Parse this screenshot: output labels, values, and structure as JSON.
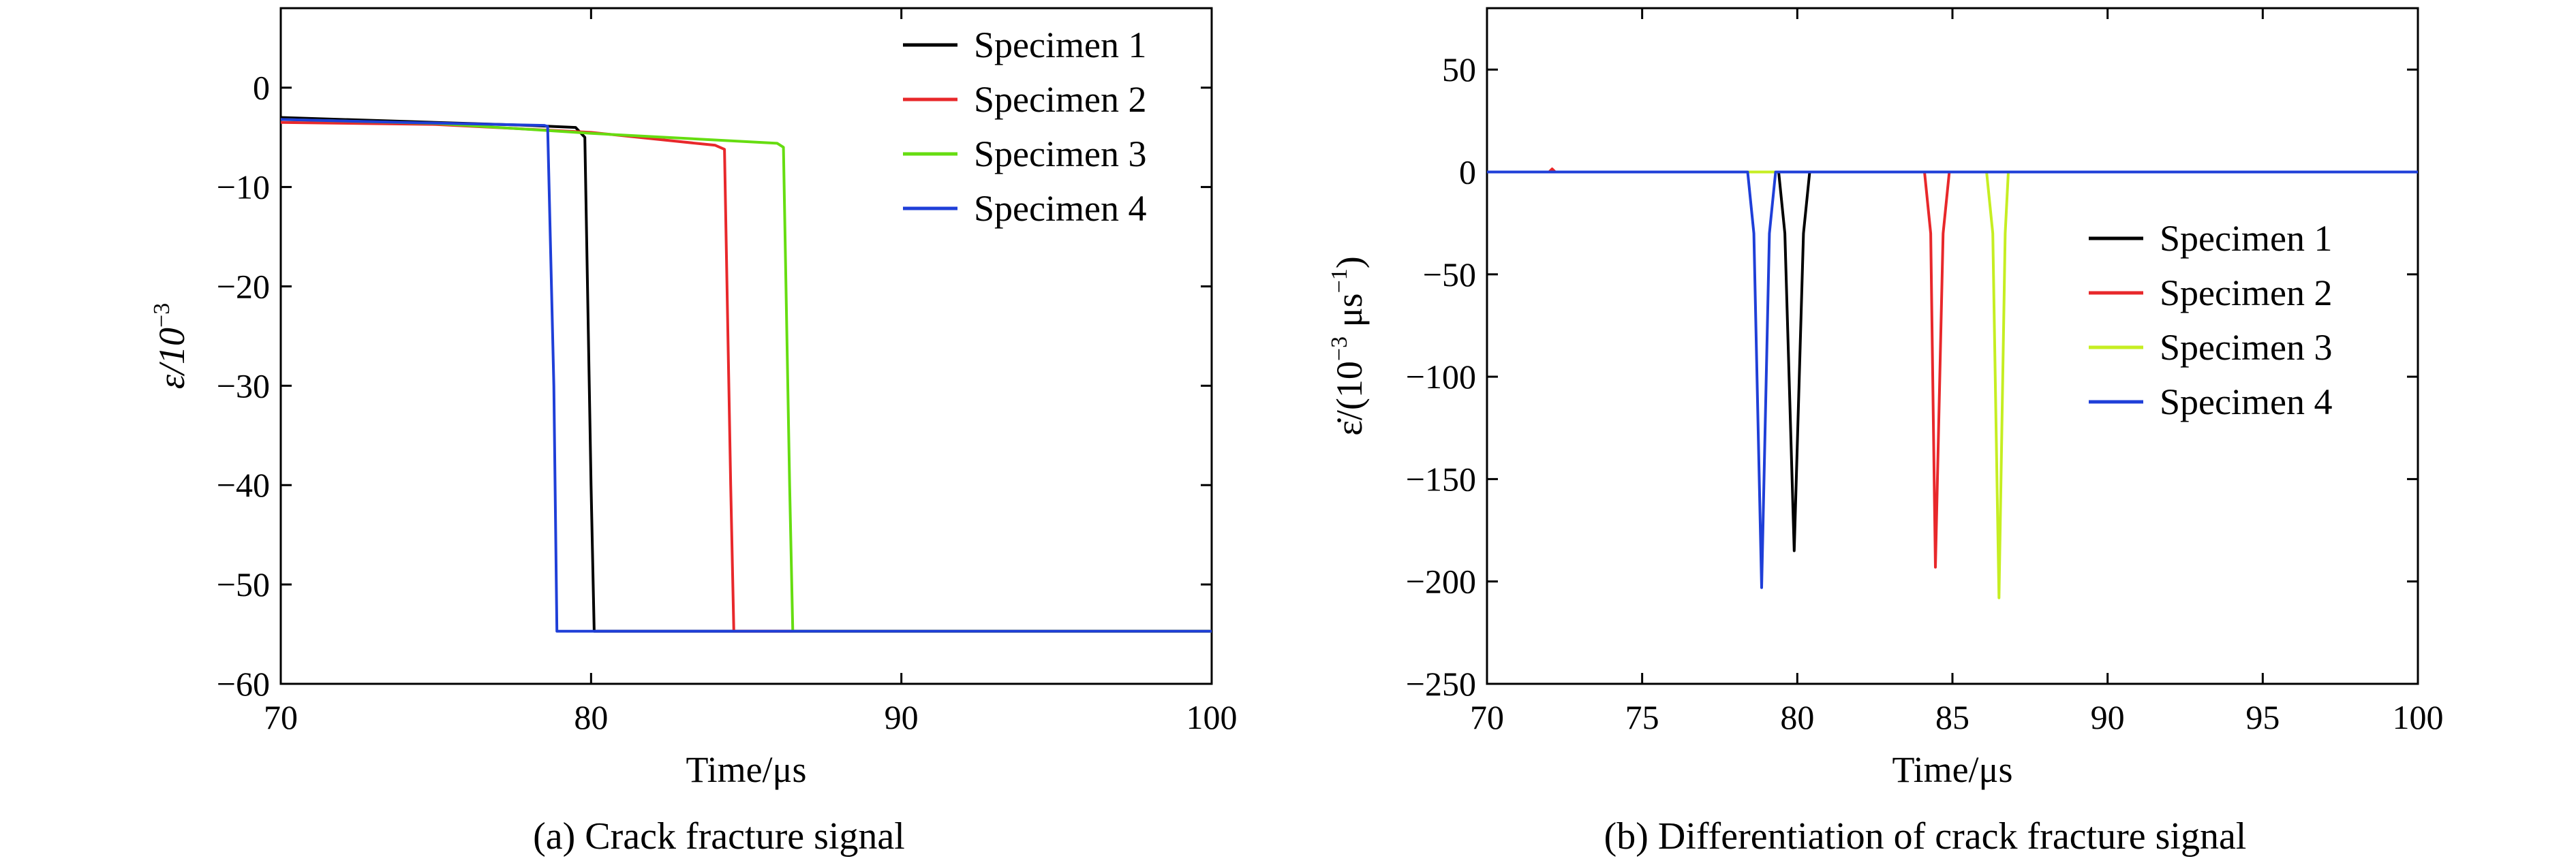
{
  "charts": [
    {
      "id": "a",
      "caption": "(a) Crack fracture signal",
      "xlabel": "Time/μs",
      "ylabel_main": "ε/10",
      "ylabel_sup": "−3",
      "xlim": [
        70,
        100
      ],
      "ylim": [
        -60,
        8
      ],
      "xticks": [
        70,
        80,
        90,
        100
      ],
      "yticks": [
        0,
        -10,
        -20,
        -30,
        -40,
        -50,
        -60
      ],
      "legend_position": "top-right",
      "chart_data": {
        "type": "line",
        "series": [
          {
            "name": "Specimen 1",
            "color": "#000000",
            "x": [
              70,
              74,
              78,
              79.5,
              79.8,
              80.0,
              80.1,
              100
            ],
            "y": [
              -3.0,
              -3.4,
              -3.8,
              -4.0,
              -5.0,
              -40.0,
              -54.7,
              -54.7
            ]
          },
          {
            "name": "Specimen 2",
            "color": "#e8282b",
            "x": [
              70,
              75,
              80,
              84.0,
              84.3,
              84.5,
              84.6,
              100
            ],
            "y": [
              -3.5,
              -3.7,
              -4.5,
              -5.8,
              -6.2,
              -40.0,
              -54.7,
              -54.7
            ]
          },
          {
            "name": "Specimen 3",
            "color": "#66dd11",
            "x": [
              70,
              75,
              80,
              86.0,
              86.2,
              86.4,
              86.5,
              100
            ],
            "y": [
              -3.2,
              -3.6,
              -4.6,
              -5.6,
              -6.0,
              -40.0,
              -54.7,
              -54.7
            ]
          },
          {
            "name": "Specimen 4",
            "color": "#1f3fd8",
            "x": [
              70,
              74,
              78.5,
              78.6,
              78.8,
              78.9,
              100
            ],
            "y": [
              -3.2,
              -3.5,
              -3.8,
              -3.9,
              -30.0,
              -54.7,
              -54.7
            ]
          }
        ]
      }
    },
    {
      "id": "b",
      "caption": "(b) Differentiation of crack fracture signal",
      "xlabel": "Time/μs",
      "ylabel_main": "ε̇/(10",
      "ylabel_sup": "−3",
      "ylabel_mid": " μs",
      "ylabel_sup2": "−1",
      "ylabel_end": ")",
      "xlim": [
        70,
        100
      ],
      "ylim": [
        -250,
        80
      ],
      "xticks": [
        70,
        75,
        80,
        85,
        90,
        95,
        100
      ],
      "yticks": [
        50,
        0,
        -50,
        -100,
        -150,
        -200,
        -250
      ],
      "legend_position": "center-right",
      "chart_data": {
        "type": "line",
        "series": [
          {
            "name": "Specimen 1",
            "color": "#000000",
            "x": [
              70,
              79.4,
              79.6,
              79.9,
              80.2,
              80.4,
              100
            ],
            "y": [
              0,
              0,
              -30,
              -185,
              -30,
              0,
              0
            ]
          },
          {
            "name": "Specimen 2",
            "color": "#e8282b",
            "x": [
              70,
              72.0,
              72.1,
              72.2,
              84.1,
              84.3,
              84.45,
              84.7,
              84.9,
              100
            ],
            "y": [
              0,
              0,
              1.5,
              0,
              0,
              -30,
              -193,
              -30,
              0,
              0
            ]
          },
          {
            "name": "Specimen 3",
            "color": "#c6ee22",
            "x": [
              70,
              86.1,
              86.3,
              86.5,
              86.7,
              86.8,
              100
            ],
            "y": [
              0,
              0,
              -30,
              -208,
              -30,
              0,
              0
            ]
          },
          {
            "name": "Specimen 4",
            "color": "#1f3fd8",
            "x": [
              70,
              78.4,
              78.6,
              78.85,
              79.1,
              79.3,
              100
            ],
            "y": [
              0,
              0,
              -30,
              -203,
              -30,
              0,
              0
            ]
          }
        ]
      }
    }
  ]
}
